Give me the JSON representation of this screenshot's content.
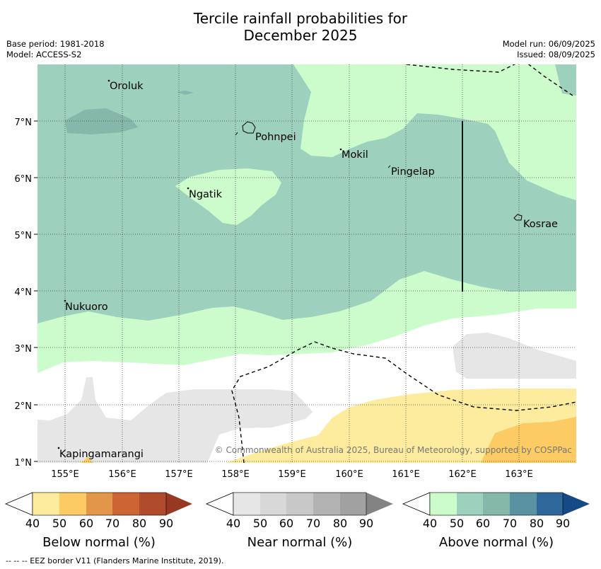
{
  "title_line1": "Tercile rainfall probabilities for",
  "title_line2": "December 2025",
  "base_period": "Base period: 1981-2018",
  "model": "Model: ACCESS-S2",
  "model_run": "Model run: 06/09/2025",
  "issued": "Issued: 08/09/2025",
  "copyright": "© Commonwealth of Australia 2025, Bureau of Meteorology, supported by COSPPac",
  "places": {
    "oroluk": "Oroluk",
    "pohnpei": "Pohnpei",
    "mokil": "Mokil",
    "pingelap": "Pingelap",
    "ngatik": "Ngatik",
    "kosrae": "Kosrae",
    "nukuoro": "Nukuoro",
    "kapingamarangi": "Kapingamarangi"
  },
  "lat_ticks": [
    "7°N",
    "6°N",
    "5°N",
    "4°N",
    "3°N",
    "2°N",
    "1°N"
  ],
  "lon_ticks": [
    "155°E",
    "156°E",
    "157°E",
    "158°E",
    "159°E",
    "160°E",
    "161°E",
    "162°E",
    "163°E"
  ],
  "colors": {
    "above_40": "#9dd1bd",
    "above_50": "#ccfccc",
    "above_60": "#86b8aa",
    "above_70": "#5b92a2",
    "above_80": "#31689b",
    "above_90": "#154a86",
    "near_40": "#e6e6e6",
    "near_50": "#d8d8d8",
    "near_60": "#c8c8c8",
    "near_70": "#b3b3b3",
    "near_80": "#a1a1a1",
    "near_90": "#838383",
    "below_40": "#fdeb9e",
    "below_50": "#fdcb63",
    "below_60": "#e2964a",
    "below_70": "#cc6533",
    "below_80": "#b04b2c",
    "below_90": "#983822"
  },
  "colorbars": {
    "below": {
      "title": "Below normal (%)",
      "ticks": [
        "40",
        "50",
        "60",
        "70",
        "80",
        "90"
      ]
    },
    "near": {
      "title": "Near normal (%)",
      "ticks": [
        "40",
        "50",
        "60",
        "70",
        "80",
        "90"
      ]
    },
    "above": {
      "title": "Above normal (%)",
      "ticks": [
        "40",
        "50",
        "60",
        "70",
        "80",
        "90"
      ]
    }
  },
  "footer": "--  --  -- EEZ border V11 (Flanders Marine Institute, 2019)."
}
